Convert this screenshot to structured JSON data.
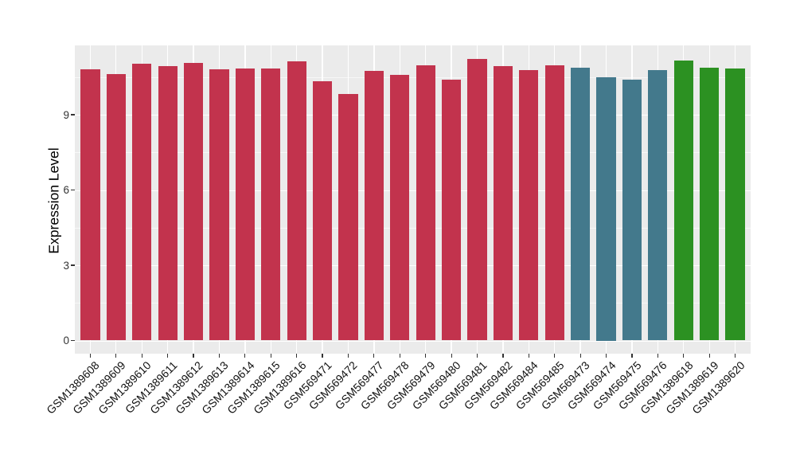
{
  "figure": {
    "background_color": "#FFFFFF",
    "panel_color": "#EBEBEB",
    "grid_color": "#FFFFFF",
    "tick_mark_color": "#333333",
    "tick_label_color": "#333333",
    "axis_title_color": "#000000"
  },
  "chart_data": {
    "type": "bar",
    "title": "",
    "xlabel": "",
    "ylabel": "Expression Level",
    "ylim": [
      0,
      11.76
    ],
    "yticks": [
      0,
      3,
      6,
      9
    ],
    "yticks_minor": [
      1.5,
      4.5,
      7.5,
      10.5
    ],
    "grid": "white major+minor horizontal lines and major vertical lines on gray panel",
    "legend_position": "none",
    "categories": [
      "GSM1389608",
      "GSM1389609",
      "GSM1389610",
      "GSM1389611",
      "GSM1389612",
      "GSM1389613",
      "GSM1389614",
      "GSM1389615",
      "GSM1389616",
      "GSM569471",
      "GSM569472",
      "GSM569477",
      "GSM569478",
      "GSM569479",
      "GSM569480",
      "GSM569481",
      "GSM569482",
      "GSM569484",
      "GSM569485",
      "GSM569473",
      "GSM569474",
      "GSM569475",
      "GSM569476",
      "GSM1389618",
      "GSM1389619",
      "GSM1389620"
    ],
    "values": [
      10.8,
      10.61,
      11.02,
      10.93,
      11.07,
      10.8,
      10.83,
      10.83,
      11.13,
      10.34,
      9.83,
      10.76,
      10.58,
      10.97,
      10.41,
      11.22,
      10.93,
      10.78,
      10.97,
      10.87,
      10.5,
      10.39,
      10.79,
      11.16,
      10.87,
      10.84
    ],
    "bar_groups": [
      "crimson",
      "crimson",
      "crimson",
      "crimson",
      "crimson",
      "crimson",
      "crimson",
      "crimson",
      "crimson",
      "crimson",
      "crimson",
      "crimson",
      "crimson",
      "crimson",
      "crimson",
      "crimson",
      "crimson",
      "crimson",
      "crimson",
      "teal",
      "teal",
      "teal",
      "teal",
      "green",
      "green",
      "green"
    ],
    "group_colors": {
      "crimson": "#C2334D",
      "teal": "#43798C",
      "green": "#2C9122"
    }
  }
}
